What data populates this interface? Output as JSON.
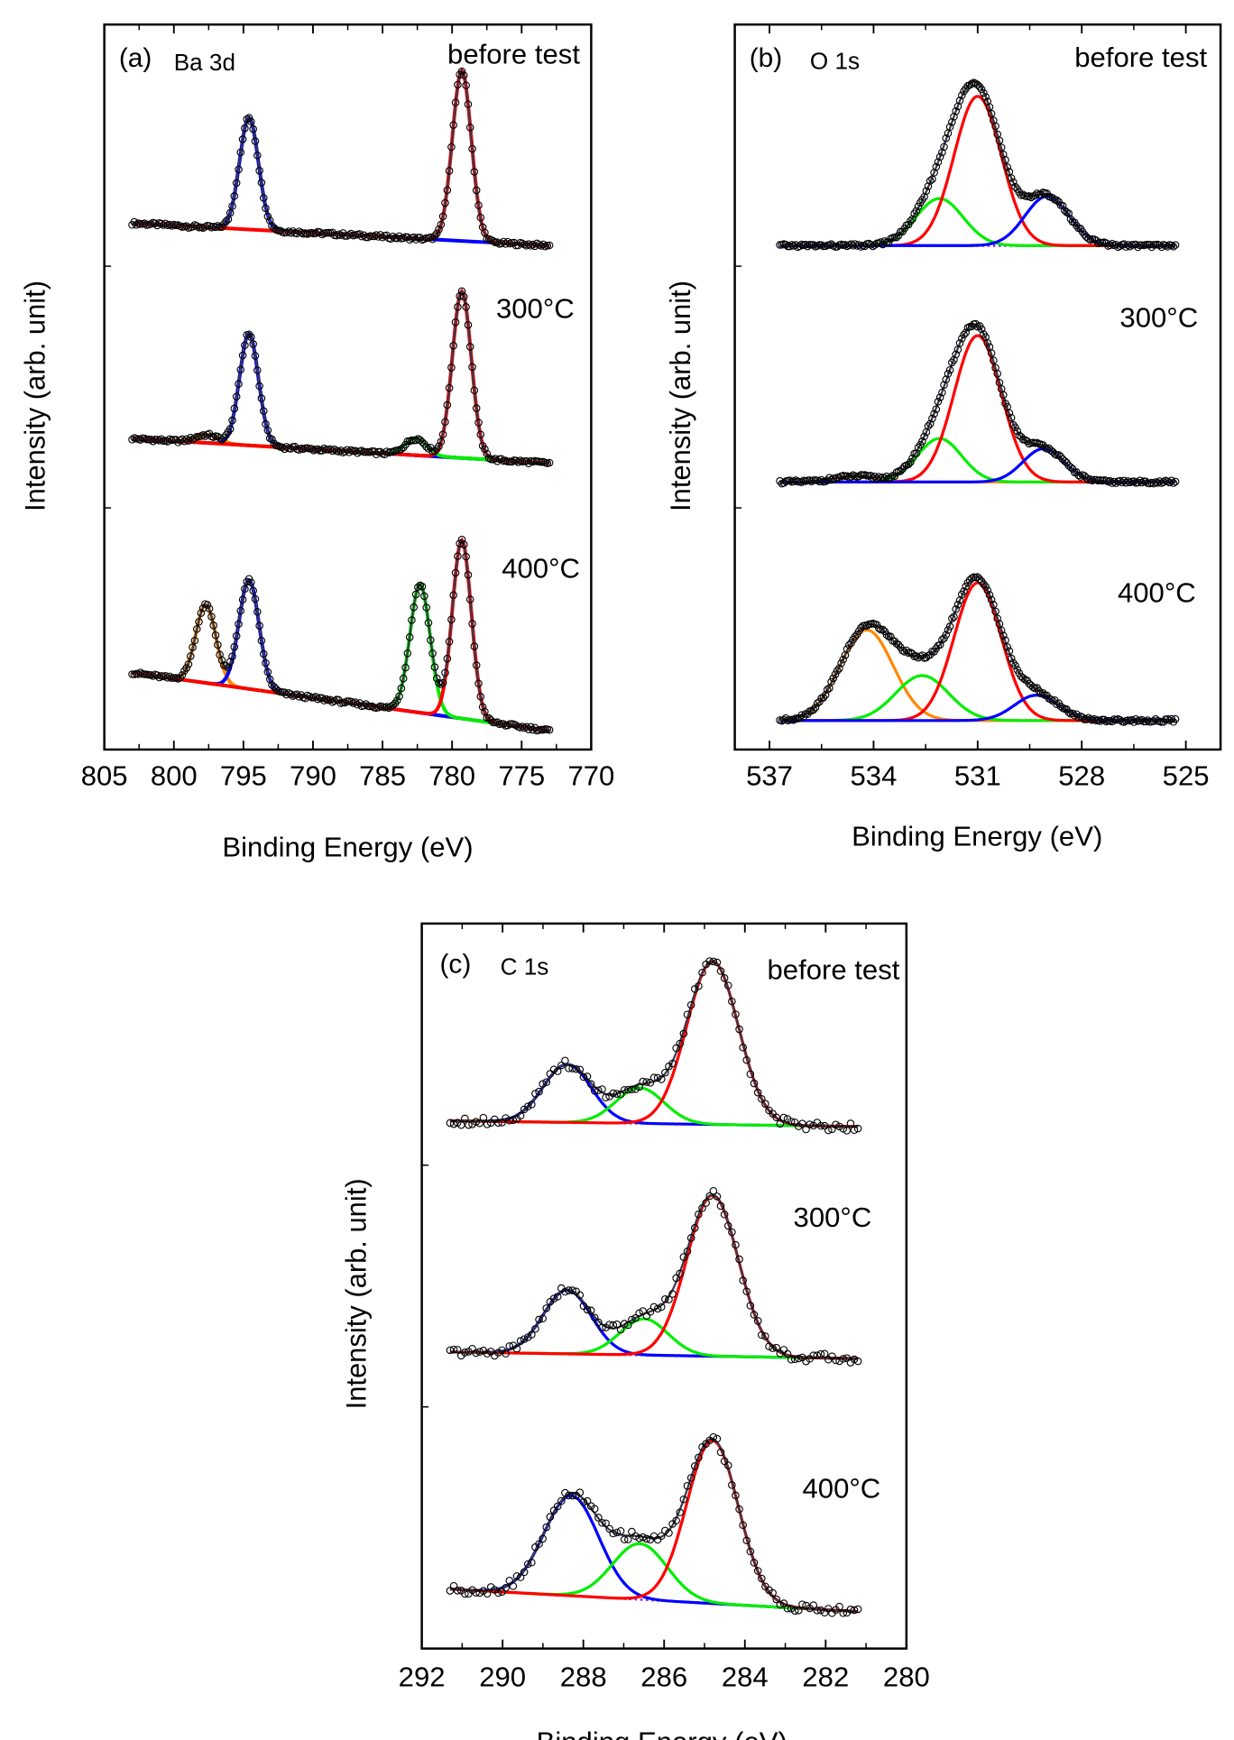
{
  "colors": {
    "blue": "#0000ff",
    "red": "#ff0000",
    "green": "#00ee00",
    "orange": "#ff8800",
    "envelope": "#3a3a4a",
    "baseline": "#8a2be2",
    "points": "#000000"
  },
  "chart_data": [
    {
      "type": "line",
      "panel": "(a)",
      "element": "Ba 3d",
      "xlabel": "Binding Energy (eV)",
      "ylabel": "Intensity (arb. unit)",
      "xlim": [
        805,
        770
      ],
      "ylim": [
        0,
        100
      ],
      "xticks": [
        805,
        800,
        795,
        790,
        785,
        780,
        775,
        770
      ],
      "x_range": [
        803,
        773
      ],
      "spectra": [
        {
          "label": "before test",
          "baseline": [
            72.6,
            69.5
          ],
          "peaks": [
            {
              "center": 794.6,
              "height": 15.4,
              "fwhm": 1.6,
              "color": "blue"
            },
            {
              "center": 779.3,
              "height": 23.5,
              "fwhm": 1.6,
              "color": "red"
            }
          ]
        },
        {
          "label": "300°C",
          "baseline": [
            42.9,
            39.5
          ],
          "peaks": [
            {
              "center": 797.6,
              "height": 1.1,
              "fwhm": 2.0,
              "color": "orange"
            },
            {
              "center": 794.6,
              "height": 15.4,
              "fwhm": 1.6,
              "color": "blue"
            },
            {
              "center": 782.6,
              "height": 2.3,
              "fwhm": 1.8,
              "color": "green"
            },
            {
              "center": 779.3,
              "height": 23.0,
              "fwhm": 1.6,
              "color": "red"
            }
          ]
        },
        {
          "label": "400°C",
          "baseline": [
            10.6,
            2.6
          ],
          "peaks": [
            {
              "center": 797.7,
              "height": 10.8,
              "fwhm": 1.7,
              "color": "orange"
            },
            {
              "center": 794.6,
              "height": 15.0,
              "fwhm": 1.7,
              "color": "blue"
            },
            {
              "center": 782.3,
              "height": 17.7,
              "fwhm": 1.7,
              "color": "green"
            },
            {
              "center": 779.3,
              "height": 24.6,
              "fwhm": 1.6,
              "color": "red"
            }
          ]
        }
      ]
    },
    {
      "type": "line",
      "panel": "(b)",
      "element": "O 1s",
      "xlabel": "Binding Energy (eV)",
      "ylabel": "Intensity (arb. unit)",
      "xlim": [
        538,
        524
      ],
      "ylim": [
        0,
        100
      ],
      "xticks": [
        537,
        534,
        531,
        528,
        525
      ],
      "x_range": [
        536.7,
        525.3
      ],
      "spectra": [
        {
          "label": "before test",
          "baseline": [
            69.5,
            69.5
          ],
          "peaks": [
            {
              "center": 532.1,
              "height": 6.5,
              "fwhm": 1.6,
              "color": "green"
            },
            {
              "center": 531.0,
              "height": 20.6,
              "fwhm": 1.6,
              "color": "red"
            },
            {
              "center": 529.0,
              "height": 6.8,
              "fwhm": 1.5,
              "color": "blue"
            }
          ]
        },
        {
          "label": "300°C",
          "baseline": [
            36.9,
            36.9
          ],
          "peaks": [
            {
              "center": 534.5,
              "height": 0.8,
              "fwhm": 1.5,
              "color": "orange"
            },
            {
              "center": 532.1,
              "height": 6.0,
              "fwhm": 1.5,
              "color": "green"
            },
            {
              "center": 531.0,
              "height": 20.2,
              "fwhm": 1.6,
              "color": "red"
            },
            {
              "center": 529.1,
              "height": 4.6,
              "fwhm": 1.4,
              "color": "blue"
            }
          ]
        },
        {
          "label": "400°C",
          "baseline": [
            4.0,
            4.0
          ],
          "peaks": [
            {
              "center": 534.2,
              "height": 12.5,
              "fwhm": 1.8,
              "color": "orange"
            },
            {
              "center": 532.6,
              "height": 6.2,
              "fwhm": 1.8,
              "color": "green"
            },
            {
              "center": 531.0,
              "height": 19.0,
              "fwhm": 1.6,
              "color": "red"
            },
            {
              "center": 529.3,
              "height": 3.5,
              "fwhm": 1.5,
              "color": "blue"
            }
          ]
        }
      ]
    },
    {
      "type": "line",
      "panel": "(c)",
      "element": "C 1s",
      "xlabel": "Binding Energy (eV)",
      "ylabel": "Intensity (arb. unit)",
      "xlim": [
        292,
        280
      ],
      "ylim": [
        0,
        100
      ],
      "xticks": [
        292,
        290,
        288,
        286,
        284,
        282,
        280
      ],
      "x_range": [
        291.3,
        281.2
      ],
      "spectra": [
        {
          "label": "before test",
          "baseline": [
            72.8,
            72.0
          ],
          "peaks": [
            {
              "center": 288.4,
              "height": 8.0,
              "fwhm": 1.4,
              "color": "blue"
            },
            {
              "center": 286.6,
              "height": 4.9,
              "fwhm": 1.4,
              "color": "green"
            },
            {
              "center": 284.8,
              "height": 22.5,
              "fwhm": 1.5,
              "color": "red"
            }
          ]
        },
        {
          "label": "300°C",
          "baseline": [
            40.9,
            40.0
          ],
          "peaks": [
            {
              "center": 288.4,
              "height": 8.8,
              "fwhm": 1.4,
              "color": "blue"
            },
            {
              "center": 286.5,
              "height": 5.0,
              "fwhm": 1.4,
              "color": "green"
            },
            {
              "center": 284.8,
              "height": 22.2,
              "fwhm": 1.5,
              "color": "red"
            }
          ]
        },
        {
          "label": "400°C",
          "baseline": [
            8.2,
            5.1
          ],
          "peaks": [
            {
              "center": 288.3,
              "height": 13.8,
              "fwhm": 1.6,
              "color": "blue"
            },
            {
              "center": 286.6,
              "height": 7.7,
              "fwhm": 1.6,
              "color": "green"
            },
            {
              "center": 284.8,
              "height": 22.5,
              "fwhm": 1.5,
              "color": "red"
            }
          ]
        }
      ]
    }
  ]
}
